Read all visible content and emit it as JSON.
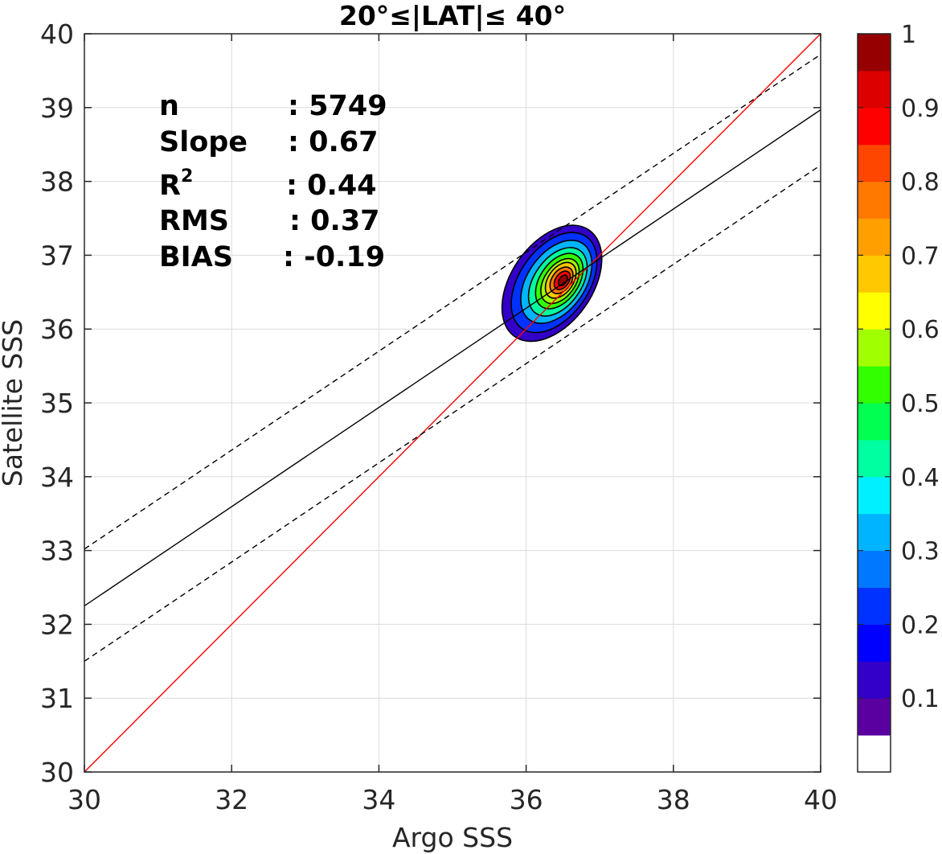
{
  "chart_data": {
    "type": "contour",
    "title": "20°≤|LAT|≤ 40°",
    "xlabel": "Argo SSS",
    "ylabel": "Satellite SSS",
    "xlim": [
      30,
      40
    ],
    "ylim": [
      30,
      40
    ],
    "xticks": [
      "30",
      "32",
      "34",
      "36",
      "38",
      "40"
    ],
    "yticks": [
      "30",
      "31",
      "32",
      "33",
      "34",
      "35",
      "36",
      "37",
      "38",
      "39",
      "40"
    ],
    "grid": true,
    "stats": [
      {
        "key": "n",
        "value": ": 5749"
      },
      {
        "key": "Slope",
        "value": ": 0.67"
      },
      {
        "key": "R",
        "sup": "2",
        "value": ": 0.44"
      },
      {
        "key": "RMS",
        "value": ": 0.37"
      },
      {
        "key": "BIAS",
        "value": ": -0.19"
      }
    ],
    "lines": [
      {
        "kind": "one-to-one",
        "color": "#ff0000",
        "style": "solid",
        "points": [
          [
            30,
            30
          ],
          [
            40,
            40
          ]
        ]
      },
      {
        "kind": "regression",
        "color": "#000000",
        "style": "solid",
        "points": [
          [
            30,
            32.25
          ],
          [
            40,
            38.97
          ]
        ]
      },
      {
        "kind": "upper-bound",
        "color": "#000000",
        "style": "dashed",
        "points": [
          [
            30,
            33.02
          ],
          [
            40,
            39.72
          ]
        ]
      },
      {
        "kind": "lower-bound",
        "color": "#000000",
        "style": "dashed",
        "points": [
          [
            30,
            31.5
          ],
          [
            40,
            38.22
          ]
        ]
      }
    ],
    "density": {
      "center": [
        36.5,
        36.65
      ],
      "contours": [
        {
          "level": 0.05,
          "rx": 0.55,
          "ry": 0.88,
          "cx": 36.35,
          "cy": 36.62
        },
        {
          "level": 0.15,
          "rx": 0.47,
          "ry": 0.76,
          "cx": 36.38,
          "cy": 36.63
        },
        {
          "level": 0.25,
          "rx": 0.39,
          "ry": 0.63,
          "cx": 36.41,
          "cy": 36.64
        },
        {
          "level": 0.35,
          "rx": 0.32,
          "ry": 0.52,
          "cx": 36.43,
          "cy": 36.64
        },
        {
          "level": 0.45,
          "rx": 0.26,
          "ry": 0.42,
          "cx": 36.45,
          "cy": 36.65
        },
        {
          "level": 0.55,
          "rx": 0.21,
          "ry": 0.34,
          "cx": 36.46,
          "cy": 36.65
        },
        {
          "level": 0.65,
          "rx": 0.17,
          "ry": 0.27,
          "cx": 36.47,
          "cy": 36.66
        },
        {
          "level": 0.75,
          "rx": 0.13,
          "ry": 0.2,
          "cx": 36.48,
          "cy": 36.66
        },
        {
          "level": 0.85,
          "rx": 0.09,
          "ry": 0.14,
          "cx": 36.49,
          "cy": 36.66
        },
        {
          "level": 0.95,
          "rx": 0.05,
          "ry": 0.08,
          "cx": 36.5,
          "cy": 36.66
        }
      ],
      "tilt_deg": 35
    },
    "colorbar": {
      "range": [
        0,
        1
      ],
      "ticks": [
        "0.1",
        "0.2",
        "0.3",
        "0.4",
        "0.5",
        "0.6",
        "0.7",
        "0.8",
        "0.9",
        "1"
      ],
      "tick_values": [
        0.1,
        0.2,
        0.3,
        0.4,
        0.5,
        0.6,
        0.7,
        0.8,
        0.9,
        1.0
      ],
      "colors": [
        "#ffffff",
        "#5a00a0",
        "#3200c8",
        "#0000ff",
        "#0032ff",
        "#0078ff",
        "#00b4ff",
        "#00f0ff",
        "#00ffa0",
        "#00ff50",
        "#32ff00",
        "#a0ff00",
        "#ffff00",
        "#ffc800",
        "#ffa000",
        "#ff7800",
        "#ff4600",
        "#ff0000",
        "#dc0000",
        "#960000"
      ]
    }
  }
}
